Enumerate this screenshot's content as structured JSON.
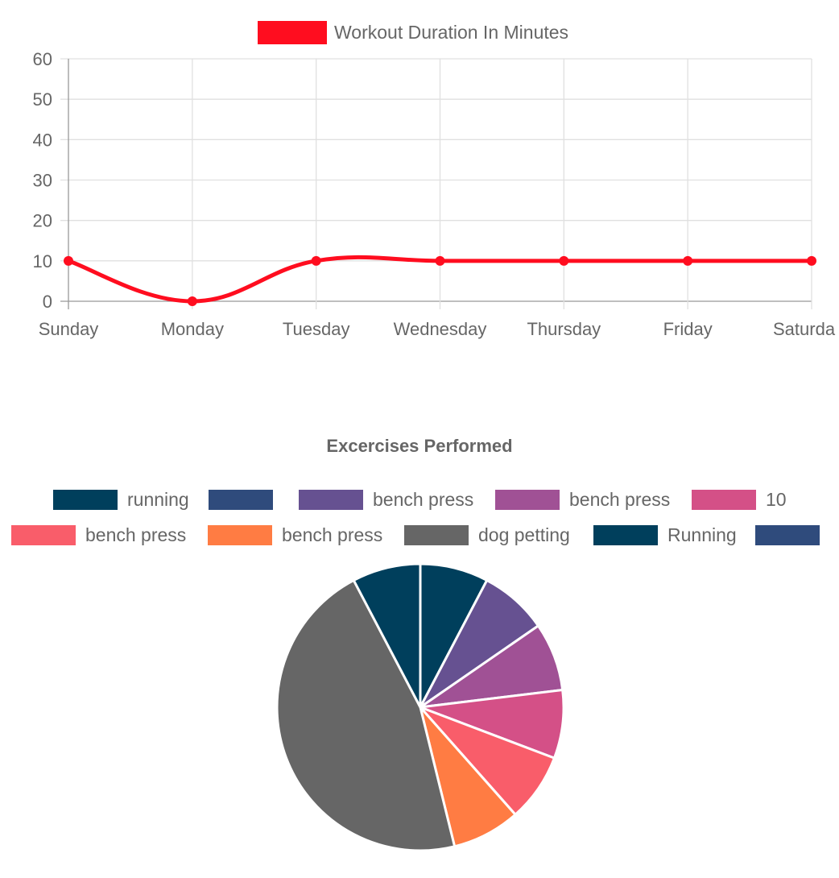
{
  "chart_data": [
    {
      "type": "line",
      "title": "",
      "xlabel": "",
      "ylabel": "",
      "categories": [
        "Sunday",
        "Monday",
        "Tuesday",
        "Wednesday",
        "Thursday",
        "Friday",
        "Saturda"
      ],
      "series": [
        {
          "name": "Workout Duration In Minutes",
          "values": [
            10,
            0,
            10,
            10,
            10,
            10,
            10
          ],
          "color": "#ff0d1f"
        }
      ],
      "y_ticks": [
        "60",
        "50",
        "40",
        "30",
        "20",
        "10",
        "0"
      ],
      "ylim": [
        0,
        60
      ],
      "grid": true,
      "legend_position": "top",
      "smoothed": true
    },
    {
      "type": "pie",
      "title": "Excercises Performed",
      "legend_position": "top",
      "legend": [
        {
          "label": "running",
          "color": "#003f5c"
        },
        {
          "label": "",
          "color": "#2f4b7c"
        },
        {
          "label": "bench press",
          "color": "#665191"
        },
        {
          "label": "bench press",
          "color": "#a05195"
        },
        {
          "label": "10",
          "color": "#d45087"
        },
        {
          "label": "bench press",
          "color": "#f95d6a"
        },
        {
          "label": "bench press",
          "color": "#ff7c43"
        },
        {
          "label": "dog petting",
          "color": "#666666"
        },
        {
          "label": "Running",
          "color": "#003f5c"
        },
        {
          "label": "",
          "color": "#2f4b7c"
        }
      ],
      "slices": [
        {
          "label": "running",
          "value": 10,
          "color": "#003f5c"
        },
        {
          "label": "",
          "value": 0,
          "color": "#2f4b7c"
        },
        {
          "label": "bench press",
          "value": 10,
          "color": "#665191"
        },
        {
          "label": "bench press",
          "value": 10,
          "color": "#a05195"
        },
        {
          "label": "10",
          "value": 10,
          "color": "#d45087"
        },
        {
          "label": "bench press",
          "value": 10,
          "color": "#f95d6a"
        },
        {
          "label": "bench press",
          "value": 10,
          "color": "#ff7c43"
        },
        {
          "label": "dog petting",
          "value": 60,
          "color": "#666666"
        },
        {
          "label": "Running",
          "value": 10,
          "color": "#003f5c"
        },
        {
          "label": "",
          "value": 0,
          "color": "#2f4b7c"
        }
      ]
    }
  ]
}
